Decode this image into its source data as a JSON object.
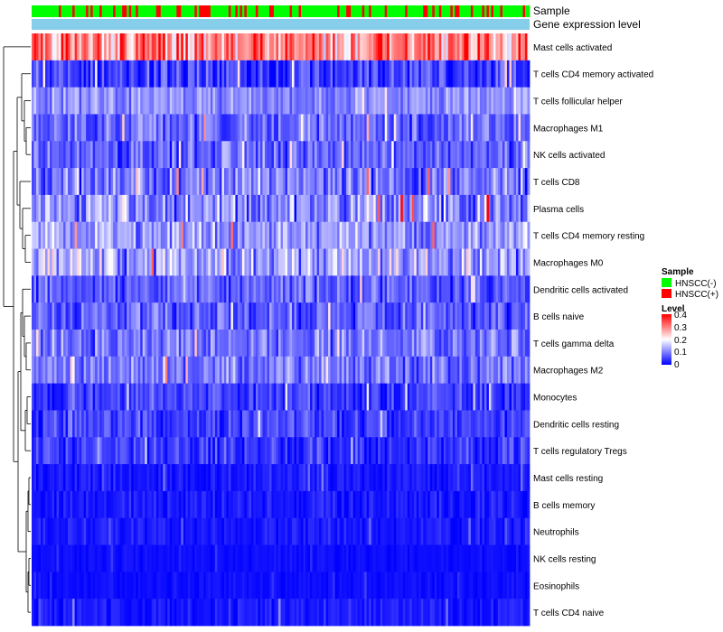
{
  "chart_data": {
    "type": "heatmap",
    "title": "",
    "column_annotations": [
      {
        "label": "Sample"
      },
      {
        "label": "Gene expression level"
      }
    ],
    "rows": [
      {
        "label": "Mast cells activated",
        "mean": 0.3,
        "spread": 0.1
      },
      {
        "label": "T cells CD4 memory activated",
        "mean": 0.05,
        "spread": 0.05
      },
      {
        "label": "T cells follicular helper",
        "mean": 0.11,
        "spread": 0.04
      },
      {
        "label": "Macrophages M1",
        "mean": 0.08,
        "spread": 0.05
      },
      {
        "label": "NK cells activated",
        "mean": 0.08,
        "spread": 0.05
      },
      {
        "label": "T cells CD8",
        "mean": 0.09,
        "spread": 0.06
      },
      {
        "label": "Plasma cells",
        "mean": 0.11,
        "spread": 0.08
      },
      {
        "label": "T cells CD4 memory resting",
        "mean": 0.12,
        "spread": 0.06
      },
      {
        "label": "Macrophages M0",
        "mean": 0.13,
        "spread": 0.08
      },
      {
        "label": "Dendritic cells activated",
        "mean": 0.07,
        "spread": 0.05
      },
      {
        "label": "B cells naive",
        "mean": 0.07,
        "spread": 0.05
      },
      {
        "label": "T cells gamma delta",
        "mean": 0.09,
        "spread": 0.05
      },
      {
        "label": "Macrophages M2",
        "mean": 0.09,
        "spread": 0.05
      },
      {
        "label": "Monocytes",
        "mean": 0.05,
        "spread": 0.04
      },
      {
        "label": "Dendritic cells resting",
        "mean": 0.05,
        "spread": 0.04
      },
      {
        "label": "T cells regulatory  Tregs",
        "mean": 0.04,
        "spread": 0.04
      },
      {
        "label": "Mast cells resting",
        "mean": 0.02,
        "spread": 0.02
      },
      {
        "label": "B cells memory",
        "mean": 0.02,
        "spread": 0.02
      },
      {
        "label": "Neutrophils",
        "mean": 0.02,
        "spread": 0.02
      },
      {
        "label": "NK cells resting",
        "mean": 0.01,
        "spread": 0.01
      },
      {
        "label": "Eosinophils",
        "mean": 0.01,
        "spread": 0.01
      },
      {
        "label": "T cells CD4 naive",
        "mean": 0.02,
        "spread": 0.02
      }
    ],
    "legends": {
      "sample": {
        "title": "Sample",
        "items": [
          {
            "label": "HNSCC(-)",
            "color": "#00ff00"
          },
          {
            "label": "HNSCC(+)",
            "color": "#ff0000"
          }
        ]
      },
      "level": {
        "title": "Level",
        "ticks": [
          "0.4",
          "0.3",
          "0.2",
          "0.1",
          "0"
        ],
        "range": [
          0,
          0.4
        ]
      }
    },
    "colorscale": {
      "low": "#0000ff",
      "mid": "#ffffff",
      "high": "#ff0000",
      "mid_value": 0.2
    },
    "annotation_bar_color": "#87ceeb",
    "n_samples": 220,
    "sample_fraction_positive": 0.25
  }
}
